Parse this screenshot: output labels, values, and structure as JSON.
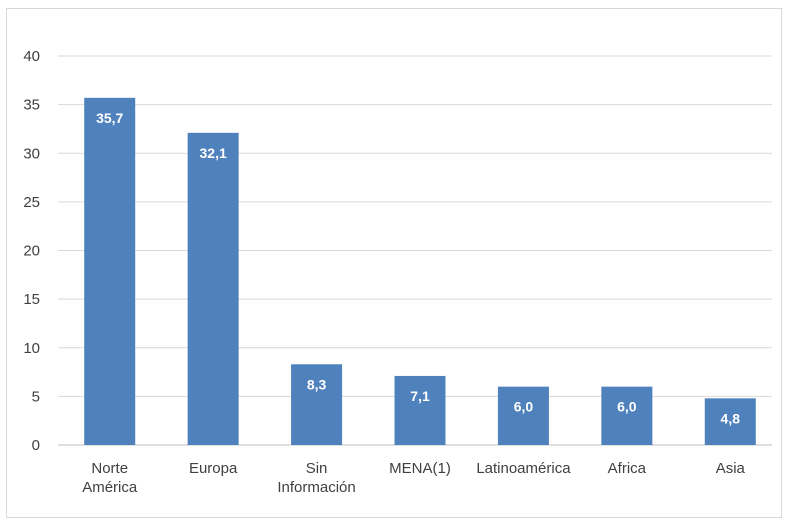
{
  "chart_data": {
    "type": "bar",
    "title": "",
    "xlabel": "",
    "ylabel": "",
    "categories": [
      [
        "Norte",
        "América"
      ],
      [
        "Europa"
      ],
      [
        "Sin",
        "Información"
      ],
      [
        "MENA(1)"
      ],
      [
        "Latinoamérica"
      ],
      [
        "Africa"
      ],
      [
        "Asia"
      ]
    ],
    "values": [
      35.7,
      32.1,
      8.3,
      7.1,
      6.0,
      6.0,
      4.8
    ],
    "value_labels": [
      "35,7",
      "32,1",
      "8,3",
      "7,1",
      "6,0",
      "6,0",
      "4,8"
    ],
    "ylim": [
      0,
      40
    ],
    "yticks": [
      0,
      5,
      10,
      15,
      20,
      25,
      30,
      35,
      40
    ],
    "grid": true,
    "legend": "none",
    "colors": {
      "bar": "#4f81bd",
      "grid": "#d9d9d9",
      "axis": "#bfbfbf",
      "text": "#404040",
      "data_label": "#ffffff"
    }
  }
}
